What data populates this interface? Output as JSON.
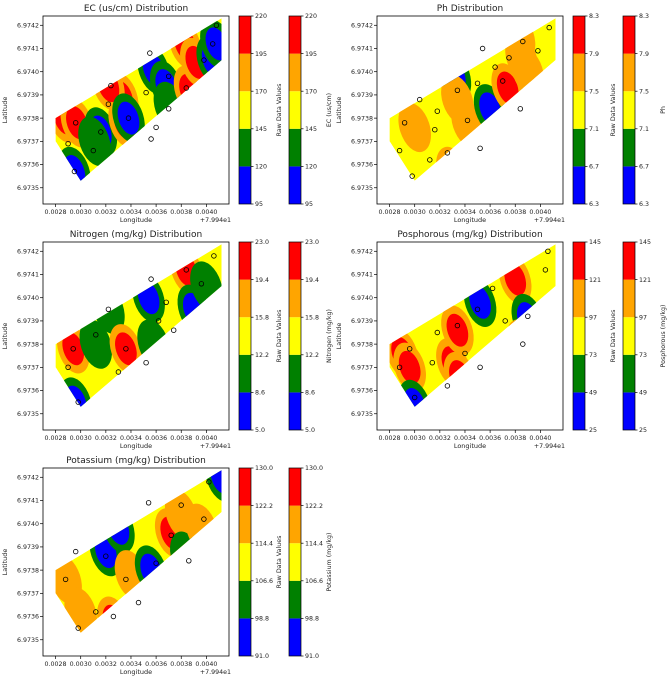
{
  "palette": [
    "#0000ff",
    "#008000",
    "#ffff00",
    "#ffa500",
    "#ff0000"
  ],
  "x_ticks": [
    "0.0028",
    "0.0030",
    "0.0032",
    "0.0034",
    "0.0036",
    "0.0038",
    "0.0040"
  ],
  "y_ticks": [
    "6.9742",
    "6.9741",
    "6.9740",
    "6.9739",
    "6.9738",
    "6.9737",
    "6.9736",
    "6.9735"
  ],
  "x_offset": "+7.994e1",
  "xlabel": "Longitude",
  "ylabel": "Latitude",
  "colorbar_label_left": "Raw Data Values",
  "chart_data": [
    {
      "type": "heatmap",
      "title": "EC (us/cm) Distribution",
      "colorbar_label": "EC (us/cm)",
      "levels": [
        "95",
        "120",
        "145",
        "170",
        "195",
        "220"
      ],
      "xlim": [
        0.0027,
        0.00418
      ],
      "ylim": [
        6.97343,
        6.97424
      ],
      "hotspots": [
        {
          "x": 0.00287,
          "y": 6.9738,
          "level": 4
        },
        {
          "x": 0.00297,
          "y": 6.97378,
          "level": 4
        },
        {
          "x": 0.00295,
          "y": 6.97357,
          "level": 0
        },
        {
          "x": 0.00316,
          "y": 6.97374,
          "level": 0
        },
        {
          "x": 0.00311,
          "y": 6.9737,
          "level": 1
        },
        {
          "x": 0.00333,
          "y": 6.97389,
          "level": 4
        },
        {
          "x": 0.00335,
          "y": 6.97378,
          "level": 4
        },
        {
          "x": 0.00322,
          "y": 6.97394,
          "level": 4
        },
        {
          "x": 0.00338,
          "y": 6.9738,
          "level": 0
        },
        {
          "x": 0.00358,
          "y": 6.97401,
          "level": 0
        },
        {
          "x": 0.00356,
          "y": 6.97366,
          "level": 0
        },
        {
          "x": 0.00368,
          "y": 6.97394,
          "level": 0
        },
        {
          "x": 0.00371,
          "y": 6.97385,
          "level": 1
        },
        {
          "x": 0.00383,
          "y": 6.97412,
          "level": 4
        },
        {
          "x": 0.00387,
          "y": 6.97392,
          "level": 4
        },
        {
          "x": 0.00392,
          "y": 6.97404,
          "level": 4
        },
        {
          "x": 0.00405,
          "y": 6.97405,
          "level": 0
        },
        {
          "x": 0.00408,
          "y": 6.97412,
          "level": 0
        }
      ],
      "points": [
        {
          "x": 0.00295,
          "y": 6.97357
        },
        {
          "x": 0.0029,
          "y": 6.97369
        },
        {
          "x": 0.00296,
          "y": 6.97378
        },
        {
          "x": 0.00316,
          "y": 6.97374
        },
        {
          "x": 0.00322,
          "y": 6.97386
        },
        {
          "x": 0.00324,
          "y": 6.97394
        },
        {
          "x": 0.0031,
          "y": 6.97366
        },
        {
          "x": 0.00338,
          "y": 6.9738
        },
        {
          "x": 0.00356,
          "y": 6.97371
        },
        {
          "x": 0.0036,
          "y": 6.97376
        },
        {
          "x": 0.00352,
          "y": 6.97391
        },
        {
          "x": 0.00355,
          "y": 6.97408
        },
        {
          "x": 0.0037,
          "y": 6.97384
        },
        {
          "x": 0.0037,
          "y": 6.97398
        },
        {
          "x": 0.00384,
          "y": 6.97393
        },
        {
          "x": 0.00398,
          "y": 6.97405
        },
        {
          "x": 0.00405,
          "y": 6.97412
        },
        {
          "x": 0.00408,
          "y": 6.9742
        }
      ]
    },
    {
      "type": "heatmap",
      "title": "Ph Distribution",
      "colorbar_label": "Ph",
      "levels": [
        "6.3",
        "6.7",
        "7.1",
        "7.5",
        "7.9",
        "8.3"
      ],
      "xlim": [
        0.0027,
        0.00418
      ],
      "ylim": [
        6.97343,
        6.97424
      ],
      "hotspots": [
        {
          "x": 0.003,
          "y": 6.97376,
          "level": 3
        },
        {
          "x": 0.00332,
          "y": 6.97398,
          "level": 0
        },
        {
          "x": 0.00334,
          "y": 6.97388,
          "level": 3
        },
        {
          "x": 0.0033,
          "y": 6.97357,
          "level": 4
        },
        {
          "x": 0.00342,
          "y": 6.97378,
          "level": 3
        },
        {
          "x": 0.0036,
          "y": 6.97384,
          "level": 0
        },
        {
          "x": 0.00374,
          "y": 6.97393,
          "level": 4
        },
        {
          "x": 0.00383,
          "y": 6.97415,
          "level": 3
        },
        {
          "x": 0.0039,
          "y": 6.974,
          "level": 3
        },
        {
          "x": 0.00385,
          "y": 6.97406,
          "level": 3
        }
      ],
      "points": [
        {
          "x": 0.00292,
          "y": 6.97378
        },
        {
          "x": 0.00288,
          "y": 6.97366
        },
        {
          "x": 0.00298,
          "y": 6.97355
        },
        {
          "x": 0.00304,
          "y": 6.97388
        },
        {
          "x": 0.00316,
          "y": 6.97375
        },
        {
          "x": 0.00318,
          "y": 6.97383
        },
        {
          "x": 0.00312,
          "y": 6.97362
        },
        {
          "x": 0.00326,
          "y": 6.97365
        },
        {
          "x": 0.00334,
          "y": 6.97392
        },
        {
          "x": 0.00342,
          "y": 6.97379
        },
        {
          "x": 0.00352,
          "y": 6.97367
        },
        {
          "x": 0.0035,
          "y": 6.97395
        },
        {
          "x": 0.00354,
          "y": 6.9741
        },
        {
          "x": 0.00364,
          "y": 6.97402
        },
        {
          "x": 0.0037,
          "y": 6.97396
        },
        {
          "x": 0.00375,
          "y": 6.97406
        },
        {
          "x": 0.00384,
          "y": 6.97384
        },
        {
          "x": 0.00386,
          "y": 6.97413
        },
        {
          "x": 0.00398,
          "y": 6.97409
        },
        {
          "x": 0.00407,
          "y": 6.97419
        }
      ]
    },
    {
      "type": "heatmap",
      "title": "Nitrogen (mg/kg) Distribution",
      "colorbar_label": "Nitrogen (mg/kg)",
      "levels": [
        "5.0",
        "8.6",
        "12.2",
        "15.8",
        "19.4",
        "23.0"
      ],
      "xlim": [
        0.0027,
        0.00418
      ],
      "ylim": [
        6.97343,
        6.97424
      ],
      "hotspots": [
        {
          "x": 0.00294,
          "y": 6.97378,
          "level": 4
        },
        {
          "x": 0.00296,
          "y": 6.97355,
          "level": 0
        },
        {
          "x": 0.00312,
          "y": 6.9738,
          "level": 1
        },
        {
          "x": 0.00322,
          "y": 6.97395,
          "level": 1
        },
        {
          "x": 0.00336,
          "y": 6.97378,
          "level": 4
        },
        {
          "x": 0.00338,
          "y": 6.97368,
          "level": 2
        },
        {
          "x": 0.00354,
          "y": 6.974,
          "level": 0
        },
        {
          "x": 0.00358,
          "y": 6.9738,
          "level": 1
        },
        {
          "x": 0.00368,
          "y": 6.97388,
          "level": 2
        },
        {
          "x": 0.00384,
          "y": 6.97412,
          "level": 4
        },
        {
          "x": 0.0039,
          "y": 6.97395,
          "level": 0
        },
        {
          "x": 0.004,
          "y": 6.97405,
          "level": 1
        }
      ],
      "points": [
        {
          "x": 0.0029,
          "y": 6.9737
        },
        {
          "x": 0.00294,
          "y": 6.97378
        },
        {
          "x": 0.00298,
          "y": 6.97355
        },
        {
          "x": 0.00312,
          "y": 6.97384
        },
        {
          "x": 0.00322,
          "y": 6.97395
        },
        {
          "x": 0.0033,
          "y": 6.97368
        },
        {
          "x": 0.00336,
          "y": 6.97378
        },
        {
          "x": 0.00352,
          "y": 6.97372
        },
        {
          "x": 0.00356,
          "y": 6.97408
        },
        {
          "x": 0.00362,
          "y": 6.9739
        },
        {
          "x": 0.00368,
          "y": 6.97398
        },
        {
          "x": 0.00374,
          "y": 6.97386
        },
        {
          "x": 0.00384,
          "y": 6.97412
        },
        {
          "x": 0.00396,
          "y": 6.97406
        },
        {
          "x": 0.00406,
          "y": 6.97418
        }
      ]
    },
    {
      "type": "heatmap",
      "title": "Posphorous (mg/kg) Distribution",
      "colorbar_label": "Posphorous (mg/kg)",
      "levels": [
        "25",
        "49",
        "73",
        "97",
        "121",
        "145"
      ],
      "xlim": [
        0.0027,
        0.00418
      ],
      "ylim": [
        6.97343,
        6.97424
      ],
      "hotspots": [
        {
          "x": 0.0029,
          "y": 6.97376,
          "level": 4
        },
        {
          "x": 0.00296,
          "y": 6.9737,
          "level": 4
        },
        {
          "x": 0.003,
          "y": 6.97354,
          "level": 0
        },
        {
          "x": 0.0033,
          "y": 6.97372,
          "level": 4
        },
        {
          "x": 0.00336,
          "y": 6.97366,
          "level": 4
        },
        {
          "x": 0.00334,
          "y": 6.97386,
          "level": 4
        },
        {
          "x": 0.00352,
          "y": 6.97398,
          "level": 0
        },
        {
          "x": 0.0038,
          "y": 6.97408,
          "level": 4
        },
        {
          "x": 0.0039,
          "y": 6.97391,
          "level": 0
        },
        {
          "x": 0.00386,
          "y": 6.9738,
          "level": 4
        }
      ],
      "points": [
        {
          "x": 0.00288,
          "y": 6.9737
        },
        {
          "x": 0.00296,
          "y": 6.97378
        },
        {
          "x": 0.003,
          "y": 6.97357
        },
        {
          "x": 0.00314,
          "y": 6.97372
        },
        {
          "x": 0.00318,
          "y": 6.97385
        },
        {
          "x": 0.00326,
          "y": 6.97362
        },
        {
          "x": 0.00334,
          "y": 6.97388
        },
        {
          "x": 0.0034,
          "y": 6.97376
        },
        {
          "x": 0.0035,
          "y": 6.97395
        },
        {
          "x": 0.00352,
          "y": 6.9737
        },
        {
          "x": 0.00362,
          "y": 6.97404
        },
        {
          "x": 0.00372,
          "y": 6.9739
        },
        {
          "x": 0.00386,
          "y": 6.9738
        },
        {
          "x": 0.0039,
          "y": 6.97392
        },
        {
          "x": 0.00404,
          "y": 6.97412
        },
        {
          "x": 0.00406,
          "y": 6.9742
        }
      ]
    },
    {
      "type": "heatmap",
      "title": "Potassium (mg/kg) Distribution",
      "colorbar_label": "Potassium (mg/kg)",
      "levels": [
        "91.0",
        "98.8",
        "106.6",
        "114.4",
        "122.2",
        "130.0"
      ],
      "xlim": [
        0.0027,
        0.00418
      ],
      "ylim": [
        6.97343,
        6.97424
      ],
      "hotspots": [
        {
          "x": 0.00288,
          "y": 6.97376,
          "level": 3
        },
        {
          "x": 0.003,
          "y": 6.97362,
          "level": 3
        },
        {
          "x": 0.0032,
          "y": 6.97388,
          "level": 0
        },
        {
          "x": 0.0033,
          "y": 6.97398,
          "level": 0
        },
        {
          "x": 0.00326,
          "y": 6.97358,
          "level": 4
        },
        {
          "x": 0.0034,
          "y": 6.97378,
          "level": 3
        },
        {
          "x": 0.00356,
          "y": 6.9738,
          "level": 0
        },
        {
          "x": 0.00372,
          "y": 6.97396,
          "level": 4
        },
        {
          "x": 0.0038,
          "y": 6.97404,
          "level": 3
        },
        {
          "x": 0.00384,
          "y": 6.97386,
          "level": 1
        },
        {
          "x": 0.00396,
          "y": 6.97398,
          "level": 3
        },
        {
          "x": 0.00412,
          "y": 6.9742,
          "level": 0
        }
      ],
      "points": [
        {
          "x": 0.00288,
          "y": 6.97376
        },
        {
          "x": 0.00296,
          "y": 6.97388
        },
        {
          "x": 0.00298,
          "y": 6.97355
        },
        {
          "x": 0.00312,
          "y": 6.97362
        },
        {
          "x": 0.0032,
          "y": 6.97386
        },
        {
          "x": 0.00326,
          "y": 6.9736
        },
        {
          "x": 0.00336,
          "y": 6.97376
        },
        {
          "x": 0.00346,
          "y": 6.97366
        },
        {
          "x": 0.00354,
          "y": 6.97409
        },
        {
          "x": 0.0036,
          "y": 6.97383
        },
        {
          "x": 0.00372,
          "y": 6.97395
        },
        {
          "x": 0.0038,
          "y": 6.97408
        },
        {
          "x": 0.00386,
          "y": 6.97384
        },
        {
          "x": 0.00398,
          "y": 6.97402
        },
        {
          "x": 0.00402,
          "y": 6.97418
        }
      ]
    }
  ]
}
